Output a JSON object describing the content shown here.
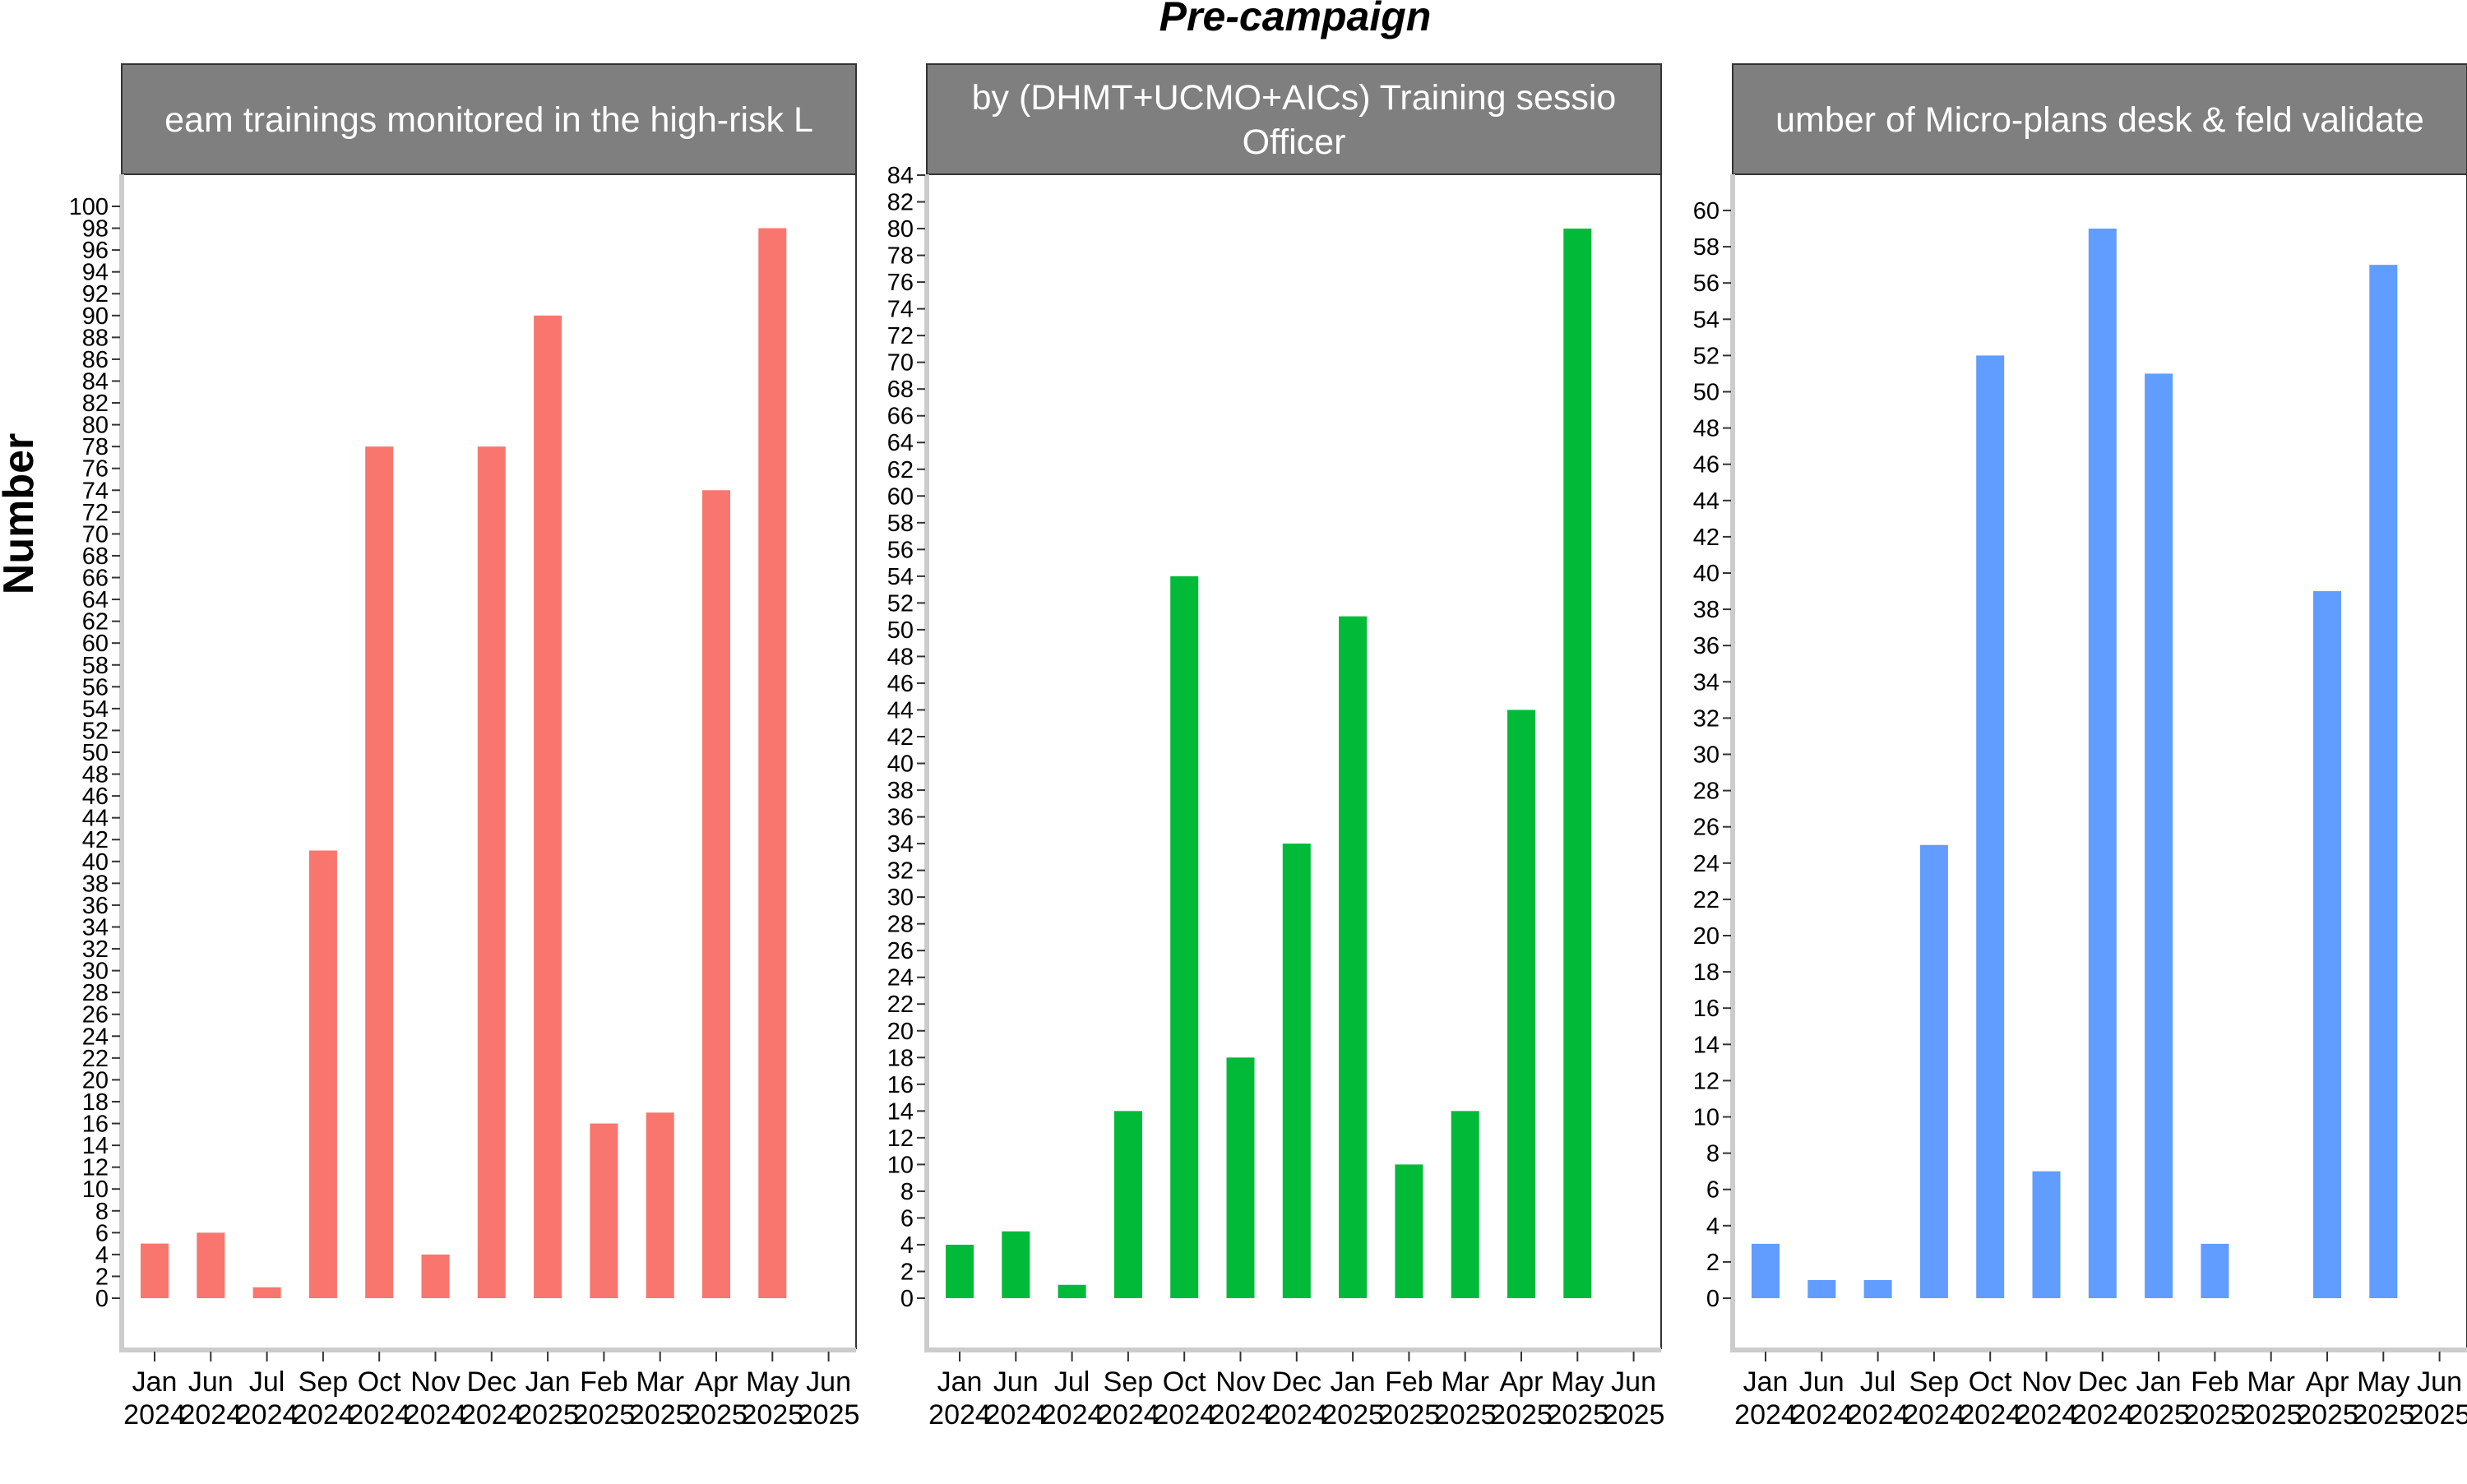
{
  "chart_data": {
    "type": "bar",
    "title": "Pre-campaign",
    "ylabel": "Number",
    "xlabel": "",
    "grid": false,
    "legend": "none",
    "categories": [
      [
        "Jan",
        "2024"
      ],
      [
        "Jun",
        "2024"
      ],
      [
        "Jul",
        "2024"
      ],
      [
        "Sep",
        "2024"
      ],
      [
        "Oct",
        "2024"
      ],
      [
        "Nov",
        "2024"
      ],
      [
        "Dec",
        "2024"
      ],
      [
        "Jan",
        "2025"
      ],
      [
        "Feb",
        "2025"
      ],
      [
        "Mar",
        "2025"
      ],
      [
        "Apr",
        "2025"
      ],
      [
        "May",
        "2025"
      ],
      [
        "Jun",
        "2025"
      ]
    ],
    "panels": [
      {
        "strip_lines": [
          "eam trainings monitored in the high-risk L"
        ],
        "color": "#F8766D",
        "ylim": [
          0,
          100
        ],
        "ytick_step": 2,
        "values": [
          5,
          6,
          1,
          41,
          78,
          4,
          78,
          90,
          16,
          17,
          74,
          98,
          null
        ]
      },
      {
        "strip_lines": [
          "by (DHMT+UCMO+AICs) Training sessio",
          "Officer"
        ],
        "color": "#00BA38",
        "ylim": [
          0,
          84
        ],
        "ytick_step": 2,
        "values": [
          4,
          5,
          1,
          14,
          54,
          18,
          34,
          51,
          10,
          14,
          44,
          80,
          null
        ]
      },
      {
        "strip_lines": [
          "umber of Micro-plans desk & feld validate"
        ],
        "color": "#619CFF",
        "ylim": [
          0,
          60
        ],
        "ytick_step": 2,
        "values": [
          3,
          1,
          1,
          25,
          52,
          7,
          59,
          51,
          3,
          null,
          39,
          57,
          null
        ]
      }
    ]
  }
}
